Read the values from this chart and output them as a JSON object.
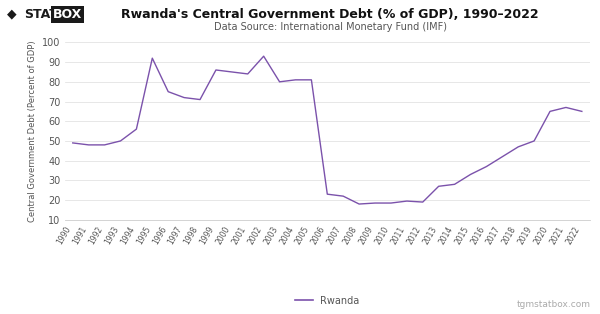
{
  "title": "Rwanda's Central Government Debt (% of GDP), 1990–2022",
  "subtitle": "Data Source: International Monetary Fund (IMF)",
  "ylabel": "Central Government Debt (Percent of GDP)",
  "legend_label": "Rwanda",
  "watermark": "tgmstatbox.com",
  "line_color": "#7B52AB",
  "background_color": "#ffffff",
  "years": [
    1990,
    1991,
    1992,
    1993,
    1994,
    1995,
    1996,
    1997,
    1998,
    1999,
    2000,
    2001,
    2002,
    2003,
    2004,
    2005,
    2006,
    2007,
    2008,
    2009,
    2010,
    2011,
    2012,
    2013,
    2014,
    2015,
    2016,
    2017,
    2018,
    2019,
    2020,
    2021,
    2022
  ],
  "values": [
    49.0,
    48.0,
    48.0,
    50.0,
    56.0,
    92.0,
    75.0,
    72.0,
    71.0,
    86.0,
    85.0,
    84.0,
    93.0,
    80.0,
    81.0,
    81.0,
    23.0,
    22.0,
    18.0,
    18.5,
    18.5,
    19.5,
    19.0,
    27.0,
    28.0,
    33.0,
    37.0,
    42.0,
    47.0,
    50.0,
    65.0,
    67.0,
    65.0
  ],
  "ylim": [
    10,
    100
  ],
  "yticks": [
    10,
    20,
    30,
    40,
    50,
    60,
    70,
    80,
    90,
    100
  ],
  "logo_diamond": "◆",
  "logo_stat": "STAT",
  "logo_box": "BOX",
  "logo_box_bg": "#1a1a1a",
  "logo_text_color": "#1a1a1a",
  "title_fontsize": 9,
  "subtitle_fontsize": 7,
  "ylabel_fontsize": 6,
  "ytick_fontsize": 7,
  "xtick_fontsize": 5.5,
  "legend_fontsize": 7,
  "watermark_fontsize": 6.5,
  "grid_color": "#dddddd",
  "spine_color": "#cccccc",
  "tick_color": "#555555"
}
